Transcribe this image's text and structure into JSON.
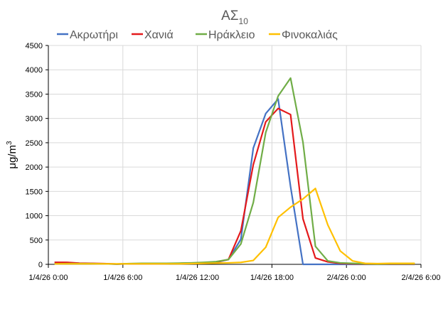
{
  "chart_data": {
    "type": "line",
    "title": "ΑΣ",
    "title_subscript": "10",
    "xlabel": "",
    "ylabel": "μg/m",
    "ylabel_superscript": "3",
    "ylim": [
      0,
      4500
    ],
    "yticks": [
      0,
      500,
      1000,
      1500,
      2000,
      2500,
      3000,
      3500,
      4000,
      4500
    ],
    "xlim_hours": [
      0,
      30
    ],
    "xtick_hours": [
      0,
      6,
      12,
      18,
      24,
      30
    ],
    "xtick_labels": [
      "1/4/26 0:00",
      "1/4/26 6:00",
      "1/4/26 12:00",
      "1/4/26 18:00",
      "2/4/26 0:00",
      "2/4/26 6:00"
    ],
    "grid": true,
    "legend_position": "top",
    "x_hours": [
      0.5,
      1.5,
      2.5,
      3.5,
      4.5,
      5.5,
      6.5,
      7.5,
      8.5,
      9.5,
      10.5,
      11.5,
      12.5,
      13.5,
      14.5,
      15.5,
      16.5,
      17.5,
      18.5,
      19.5,
      20.5,
      21.5,
      22.5,
      23.5,
      24.5,
      25.5,
      26.5,
      27.5,
      28.5,
      29.5
    ],
    "series": [
      {
        "name": "Ακρωτήρι",
        "color": "#4472C4",
        "values": [
          40,
          35,
          20,
          15,
          10,
          5,
          10,
          10,
          10,
          15,
          20,
          25,
          30,
          40,
          100,
          515,
          2390,
          3100,
          3400,
          1600,
          0,
          0,
          0,
          0,
          0,
          0,
          0,
          0,
          0,
          0
        ]
      },
      {
        "name": "Χανιά",
        "color": "#E41A1C",
        "values": [
          40,
          40,
          25,
          20,
          15,
          5,
          10,
          10,
          10,
          15,
          20,
          25,
          30,
          45,
          100,
          690,
          2050,
          2930,
          3205,
          3080,
          935,
          130,
          50,
          20,
          10,
          5,
          5,
          5,
          5,
          5
        ]
      },
      {
        "name": "Ηράκλειο",
        "color": "#70AD47",
        "values": [
          10,
          15,
          15,
          15,
          10,
          5,
          15,
          20,
          20,
          20,
          25,
          30,
          40,
          55,
          100,
          420,
          1270,
          2710,
          3460,
          3830,
          2510,
          370,
          70,
          30,
          20,
          10,
          5,
          10,
          10,
          10
        ]
      },
      {
        "name": "Φινοκαλιάς",
        "color": "#FFC000",
        "values": [
          10,
          10,
          10,
          10,
          10,
          10,
          10,
          10,
          10,
          10,
          10,
          15,
          20,
          25,
          30,
          40,
          80,
          350,
          965,
          1175,
          1345,
          1560,
          810,
          275,
          70,
          20,
          15,
          20,
          20,
          20
        ]
      }
    ]
  }
}
